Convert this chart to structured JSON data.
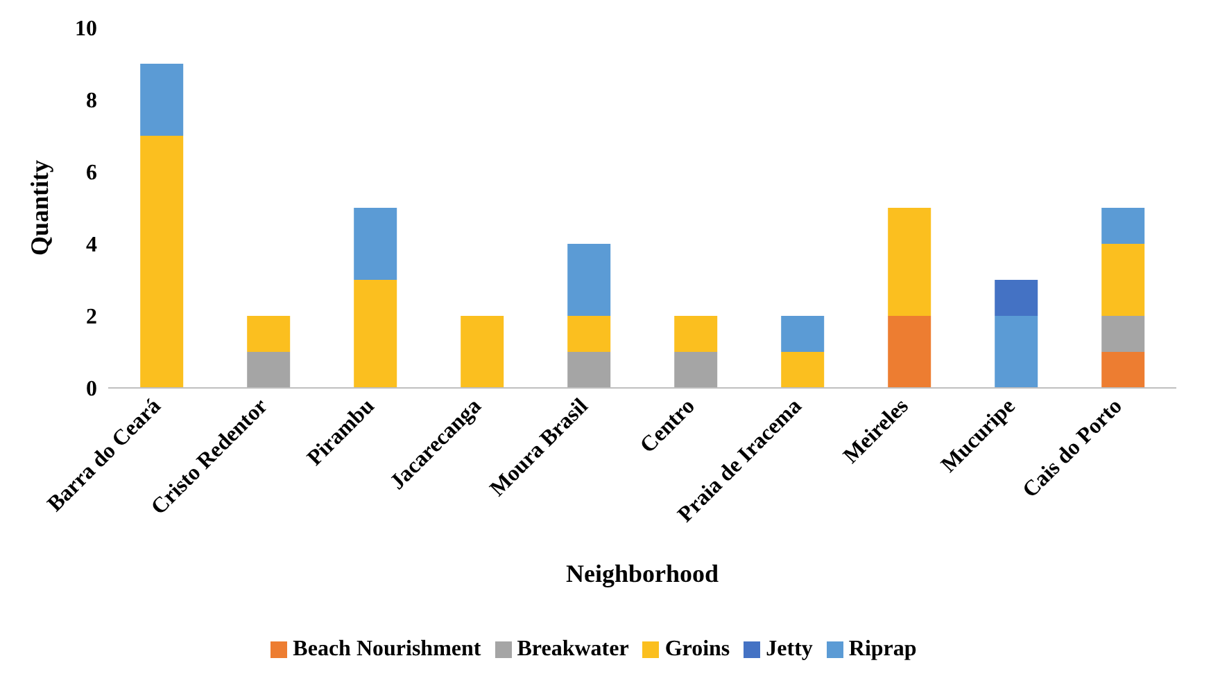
{
  "chart_data": {
    "type": "bar",
    "stacked": true,
    "xlabel": "Neighborhood",
    "ylabel": "Quantity",
    "categories": [
      "Barra do Ceará",
      "Cristo Redentor",
      "Pirambu",
      "Jacarecanga",
      "Moura Brasil",
      "Centro",
      "Praia de Iracema",
      "Meireles",
      "Mucuripe",
      "Cais do Porto"
    ],
    "series": [
      {
        "name": "Beach Nourishment",
        "color": "#ed7d31",
        "values": [
          null,
          null,
          null,
          null,
          null,
          null,
          null,
          2,
          null,
          1
        ]
      },
      {
        "name": "Breakwater",
        "color": "#a5a5a5",
        "values": [
          null,
          1,
          null,
          null,
          1,
          1,
          null,
          null,
          null,
          1
        ]
      },
      {
        "name": "Groins",
        "color": "#fbbf1f",
        "values": [
          7,
          1,
          3,
          2,
          1,
          1,
          1,
          3,
          null,
          2
        ]
      },
      {
        "name": "Riprap",
        "color": "#5b9bd5",
        "values": [
          2,
          null,
          2,
          null,
          2,
          null,
          1,
          null,
          2,
          1
        ]
      },
      {
        "name": "Jetty",
        "color": "#4472c4",
        "values": [
          null,
          null,
          null,
          null,
          null,
          null,
          null,
          null,
          1,
          null
        ]
      }
    ],
    "ylim": [
      0,
      10
    ],
    "yticks": [
      0,
      2,
      4,
      6,
      8,
      10
    ],
    "grid": false,
    "legend": "bottom"
  }
}
